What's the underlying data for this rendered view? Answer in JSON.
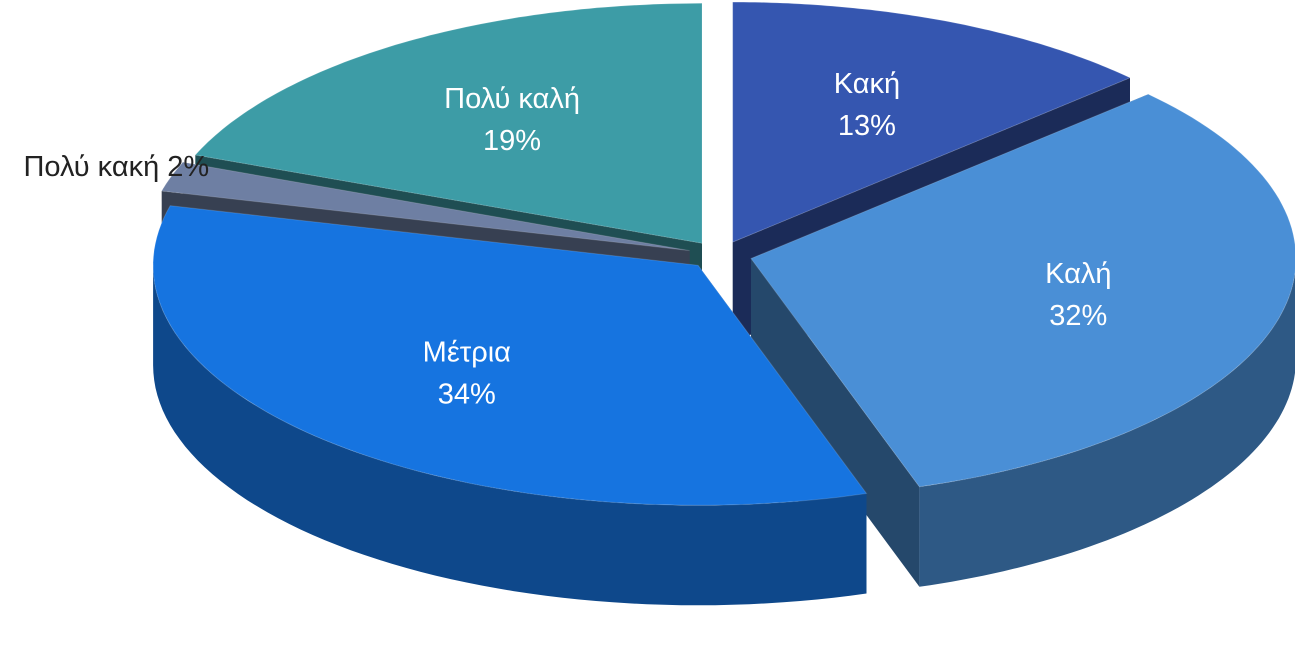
{
  "chart_data": {
    "type": "pie",
    "categories": [
      "Κακή",
      "Καλή",
      "Μέτρια",
      "Πολύ κακή",
      "Πολύ καλή"
    ],
    "values": [
      13,
      32,
      34,
      2,
      19
    ],
    "value_labels": [
      "13%",
      "32%",
      "34%",
      "2%",
      "19%"
    ],
    "colors": [
      "#3556b0",
      "#4a8fd6",
      "#1674e0",
      "#6e7fa3",
      "#3d9ca6"
    ]
  }
}
